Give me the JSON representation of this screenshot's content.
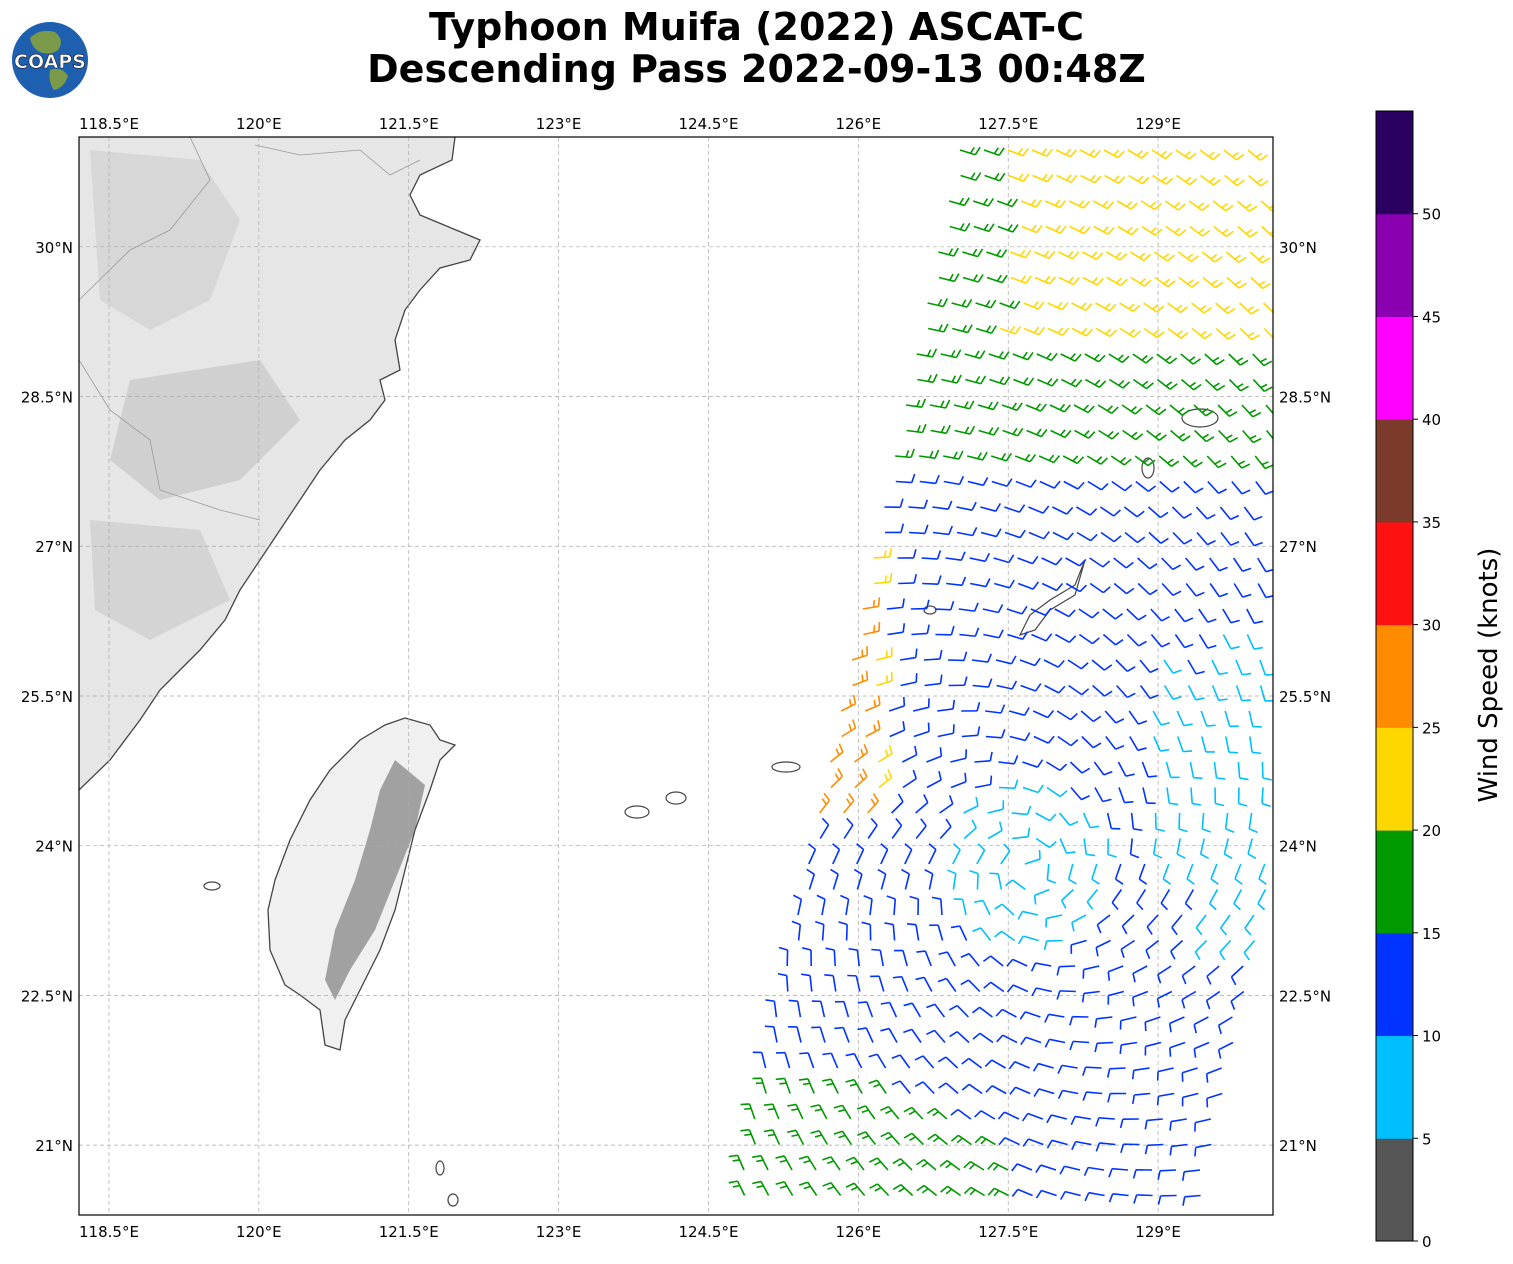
{
  "title_line1": "Typhoon Muifa (2022) ASCAT-C",
  "title_line2": "Descending Pass 2022-09-13 00:48Z",
  "logo_text": "COAPS",
  "colorbar": {
    "label": "Wind Speed (knots)",
    "ticks": [
      "0",
      "5",
      "10",
      "15",
      "20",
      "25",
      "30",
      "35",
      "40",
      "45",
      "50"
    ],
    "colors": [
      "#555555",
      "#00bfff",
      "#0033ff",
      "#009900",
      "#ffd700",
      "#ff8c00",
      "#ff1111",
      "#7b3a2a",
      "#ff00ff",
      "#8a00b0",
      "#2a0060"
    ]
  },
  "axes": {
    "lon_labels": [
      "118.5°E",
      "120°E",
      "121.5°E",
      "123°E",
      "124.5°E",
      "126°E",
      "127.5°E",
      "129°E"
    ],
    "lat_labels": [
      "30°N",
      "28.5°N",
      "27°N",
      "25.5°N",
      "24°N",
      "22.5°N",
      "21°N"
    ],
    "lon_range": [
      118.2,
      130.15
    ],
    "lat_range": [
      20.3,
      31.1
    ]
  }
}
